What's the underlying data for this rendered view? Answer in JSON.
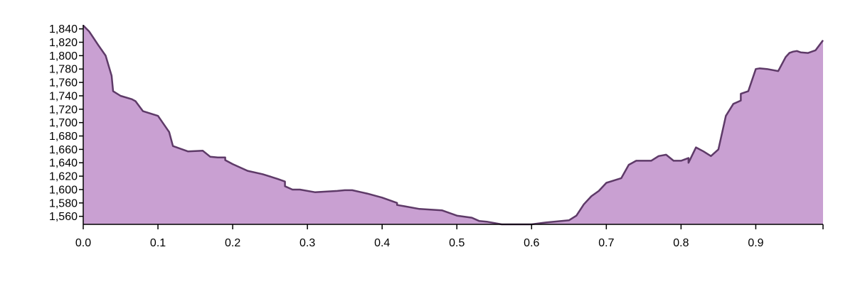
{
  "chart_data": {
    "type": "area",
    "title": "",
    "xlabel": "",
    "ylabel": "",
    "xlim": [
      0,
      0.99
    ],
    "ylim": [
      1548,
      1846
    ],
    "x_ticks": [
      0.0,
      0.1,
      0.2,
      0.3,
      0.4,
      0.5,
      0.6,
      0.7,
      0.8,
      0.9
    ],
    "x_tick_labels": [
      "0.0",
      "0.1",
      "0.2",
      "0.3",
      "0.4",
      "0.5",
      "0.6",
      "0.7",
      "0.8",
      "0.9"
    ],
    "y_ticks": [
      1560,
      1580,
      1600,
      1620,
      1640,
      1660,
      1680,
      1700,
      1720,
      1740,
      1760,
      1780,
      1800,
      1820,
      1840
    ],
    "y_tick_labels": [
      "1,560",
      "1,580",
      "1,600",
      "1,620",
      "1,640",
      "1,660",
      "1,680",
      "1,700",
      "1,720",
      "1,740",
      "1,760",
      "1,780",
      "1,800",
      "1,820",
      "1,840"
    ],
    "grid": false,
    "legend": "none",
    "fill_color": "#c9a0d2",
    "line_color": "#5e3a68",
    "series": [
      {
        "x": [
          0.0,
          0.008,
          0.02,
          0.03,
          0.038,
          0.04,
          0.05,
          0.065,
          0.07,
          0.08,
          0.1,
          0.115,
          0.12,
          0.14,
          0.16,
          0.17,
          0.18,
          0.19,
          0.19,
          0.2,
          0.22,
          0.24,
          0.26,
          0.27,
          0.27,
          0.28,
          0.29,
          0.31,
          0.34,
          0.35,
          0.36,
          0.38,
          0.4,
          0.42,
          0.42,
          0.43,
          0.45,
          0.48,
          0.5,
          0.52,
          0.53,
          0.54,
          0.56,
          0.6,
          0.62,
          0.64,
          0.65,
          0.66,
          0.67,
          0.68,
          0.69,
          0.7,
          0.72,
          0.73,
          0.74,
          0.76,
          0.77,
          0.78,
          0.79,
          0.8,
          0.81,
          0.81,
          0.82,
          0.83,
          0.84,
          0.85,
          0.86,
          0.87,
          0.88,
          0.88,
          0.89,
          0.9,
          0.905,
          0.915,
          0.93,
          0.94,
          0.945,
          0.95,
          0.955,
          0.96,
          0.97,
          0.98,
          0.99
        ],
        "y": [
          1845,
          1836,
          1816,
          1800,
          1770,
          1747,
          1740,
          1735,
          1732,
          1717,
          1710,
          1686,
          1665,
          1657,
          1658,
          1649,
          1648,
          1648,
          1644,
          1638,
          1628,
          1623,
          1616,
          1612,
          1605,
          1600,
          1600,
          1596,
          1598,
          1599,
          1599,
          1594,
          1588,
          1580,
          1577,
          1575,
          1571,
          1569,
          1561,
          1558,
          1553,
          1552,
          1548,
          1548,
          1551,
          1553,
          1554,
          1561,
          1578,
          1590,
          1598,
          1610,
          1617,
          1637,
          1643,
          1643,
          1650,
          1652,
          1643,
          1643,
          1647,
          1640,
          1663,
          1657,
          1650,
          1660,
          1710,
          1728,
          1733,
          1743,
          1747,
          1780,
          1781,
          1780,
          1777,
          1798,
          1804,
          1806,
          1807,
          1805,
          1804,
          1808,
          1823
        ]
      }
    ]
  }
}
